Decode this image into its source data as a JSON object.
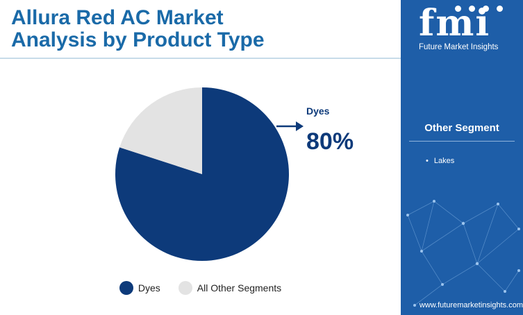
{
  "title": {
    "line1": "Allura Red AC Market",
    "line2": "Analysis by Product Type"
  },
  "chart_data": {
    "type": "pie",
    "slices": [
      {
        "label": "Dyes",
        "value": 80,
        "color": "#0d3a7a"
      },
      {
        "label": "All Other Segments",
        "value": 20,
        "color": "#e3e3e3"
      }
    ],
    "legend_position": "bottom",
    "callout": {
      "label": "Dyes",
      "value": "80%"
    }
  },
  "legend": {
    "items": [
      {
        "label": "Dyes",
        "color": "#0d3a7a"
      },
      {
        "label": "All Other Segments",
        "color": "#e3e3e3"
      }
    ]
  },
  "sidebar": {
    "logo_text": "fmi",
    "logo_sub": "Future Market Insights",
    "heading": "Other Segment",
    "items": [
      "Lakes"
    ],
    "url": "www.futuremarketinsights.com",
    "background": "#1e5ea8"
  },
  "colors": {
    "title": "#1a6aa8",
    "accent": "#0d3a7a"
  }
}
